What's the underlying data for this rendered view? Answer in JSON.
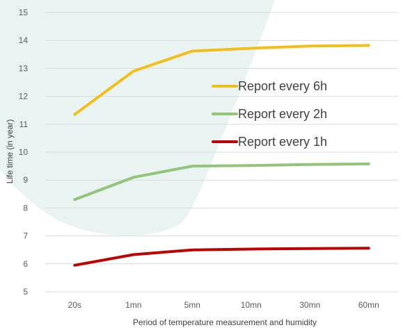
{
  "chart_data": {
    "type": "line",
    "title": "",
    "xlabel": "Period of temperature measurement and humidity",
    "ylabel": "Life time (in year)",
    "categories": [
      "20s",
      "1mn",
      "5mn",
      "10mn",
      "30mn",
      "60mn"
    ],
    "ylim": [
      5,
      15
    ],
    "yticks": [
      5,
      6,
      7,
      8,
      9,
      10,
      11,
      12,
      13,
      14,
      15
    ],
    "grid": true,
    "legend_position": "center-right",
    "series": [
      {
        "name": "Report every 6h",
        "color": "#F2BE1A",
        "values": [
          11.35,
          12.9,
          13.62,
          13.72,
          13.8,
          13.82
        ]
      },
      {
        "name": "Report every 2h",
        "color": "#92C47A",
        "values": [
          8.3,
          9.1,
          9.5,
          9.52,
          9.56,
          9.58
        ]
      },
      {
        "name": "Report every 1h",
        "color": "#C00000",
        "values": [
          5.95,
          6.33,
          6.5,
          6.53,
          6.55,
          6.56
        ]
      }
    ]
  }
}
